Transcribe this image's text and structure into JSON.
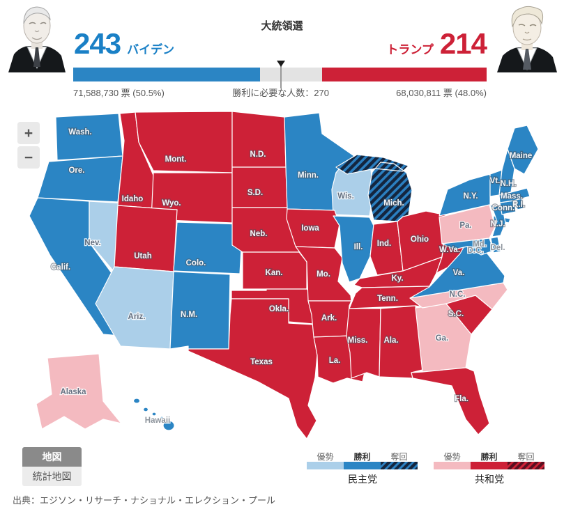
{
  "header": {
    "title": "大統領選",
    "biden": {
      "name": "バイデン",
      "electoral": "243",
      "votes": "71,588,730 票 (50.5%)"
    },
    "trump": {
      "name": "トランプ",
      "electoral": "214",
      "votes": "68,030,811 票 (48.0%)"
    },
    "majority_label": "勝利に必要な人数：270",
    "majority": 270
  },
  "map": {
    "zoom_in_label": "+",
    "zoom_out_label": "−",
    "states": [
      {
        "id": "wash",
        "label": "Wash.",
        "status": "dem-win"
      },
      {
        "id": "ore",
        "label": "Ore.",
        "status": "dem-win"
      },
      {
        "id": "calif",
        "label": "Calif.",
        "status": "dem-win"
      },
      {
        "id": "nev",
        "label": "Nev.",
        "status": "dem-lead"
      },
      {
        "id": "idaho",
        "label": "Idaho",
        "status": "rep-win"
      },
      {
        "id": "mont",
        "label": "Mont.",
        "status": "rep-win"
      },
      {
        "id": "wyo",
        "label": "Wyo.",
        "status": "rep-win"
      },
      {
        "id": "utah",
        "label": "Utah",
        "status": "rep-win"
      },
      {
        "id": "ariz",
        "label": "Ariz.",
        "status": "dem-lead"
      },
      {
        "id": "colo",
        "label": "Colo.",
        "status": "dem-win"
      },
      {
        "id": "nm",
        "label": "N.M.",
        "status": "dem-win"
      },
      {
        "id": "nd",
        "label": "N.D.",
        "status": "rep-win"
      },
      {
        "id": "sd",
        "label": "S.D.",
        "status": "rep-win"
      },
      {
        "id": "neb",
        "label": "Neb.",
        "status": "rep-win"
      },
      {
        "id": "kan",
        "label": "Kan.",
        "status": "rep-win"
      },
      {
        "id": "okla",
        "label": "Okla.",
        "status": "rep-win"
      },
      {
        "id": "texas",
        "label": "Texas",
        "status": "rep-win"
      },
      {
        "id": "minn",
        "label": "Minn.",
        "status": "dem-win"
      },
      {
        "id": "wis",
        "label": "Wis.",
        "status": "dem-lead"
      },
      {
        "id": "iowa",
        "label": "Iowa",
        "status": "rep-win"
      },
      {
        "id": "mo",
        "label": "Mo.",
        "status": "rep-win"
      },
      {
        "id": "ark",
        "label": "Ark.",
        "status": "rep-win"
      },
      {
        "id": "la",
        "label": "La.",
        "status": "rep-win"
      },
      {
        "id": "ill",
        "label": "Ill.",
        "status": "dem-win"
      },
      {
        "id": "ind",
        "label": "Ind.",
        "status": "rep-win"
      },
      {
        "id": "mich",
        "label": "Mich.",
        "status": "dem-flip"
      },
      {
        "id": "ohio",
        "label": "Ohio",
        "status": "rep-win"
      },
      {
        "id": "ky",
        "label": "Ky.",
        "status": "rep-win"
      },
      {
        "id": "tenn",
        "label": "Tenn.",
        "status": "rep-win"
      },
      {
        "id": "miss",
        "label": "Miss.",
        "status": "rep-win"
      },
      {
        "id": "ala",
        "label": "Ala.",
        "status": "rep-win"
      },
      {
        "id": "ga",
        "label": "Ga.",
        "status": "rep-lead"
      },
      {
        "id": "sc",
        "label": "S.C.",
        "status": "rep-win"
      },
      {
        "id": "nc",
        "label": "N.C.",
        "status": "rep-lead"
      },
      {
        "id": "fla",
        "label": "Fla.",
        "status": "rep-win"
      },
      {
        "id": "va",
        "label": "Va.",
        "status": "dem-win"
      },
      {
        "id": "wva",
        "label": "W.Va.",
        "status": "rep-win"
      },
      {
        "id": "pa",
        "label": "Pa.",
        "status": "rep-lead"
      },
      {
        "id": "ny",
        "label": "N.Y.",
        "status": "dem-win"
      },
      {
        "id": "nj",
        "label": "N.J.",
        "status": "dem-win"
      },
      {
        "id": "md",
        "label": "Md.",
        "status": "dem-win"
      },
      {
        "id": "del",
        "label": "Del.",
        "status": "dem-win"
      },
      {
        "id": "dc",
        "label": "D.C.",
        "status": "dem-win"
      },
      {
        "id": "conn",
        "label": "Conn.",
        "status": "dem-win"
      },
      {
        "id": "ri",
        "label": "R.I.",
        "status": "dem-win"
      },
      {
        "id": "mass",
        "label": "Mass.",
        "status": "dem-win"
      },
      {
        "id": "vt",
        "label": "Vt.",
        "status": "dem-win"
      },
      {
        "id": "nh",
        "label": "N.H.",
        "status": "dem-win"
      },
      {
        "id": "maine",
        "label": "Maine",
        "status": "dem-win"
      },
      {
        "id": "alaska",
        "label": "Alaska",
        "status": "rep-lead"
      },
      {
        "id": "hawaii",
        "label": "Hawaii",
        "status": "dem-win"
      }
    ]
  },
  "legend": {
    "dem": {
      "party": "民主党",
      "lead": "優勢",
      "win": "勝利",
      "flip": "奪回"
    },
    "rep": {
      "party": "共和党",
      "lead": "優勢",
      "win": "勝利",
      "flip": "奪回"
    }
  },
  "controls": {
    "map": "地図",
    "stat_map": "統計地図"
  },
  "source": "出典：エジソン・リサーチ・ナショナル・エレクション・プール",
  "colors": {
    "dem": "#2b85c4",
    "dem_lead": "#abcfe9",
    "dem_flip_bg": "#14263f",
    "dem_flip_stripe": "#2b7fc0",
    "rep": "#cd2137",
    "rep_lead": "#f4bac0",
    "rep_flip_bg": "#5a1020",
    "rep_flip_stripe": "#cf2136",
    "dem_text": "#1a80c6",
    "rep_text": "#cd2137",
    "bar_track": "#e3e3e3"
  }
}
